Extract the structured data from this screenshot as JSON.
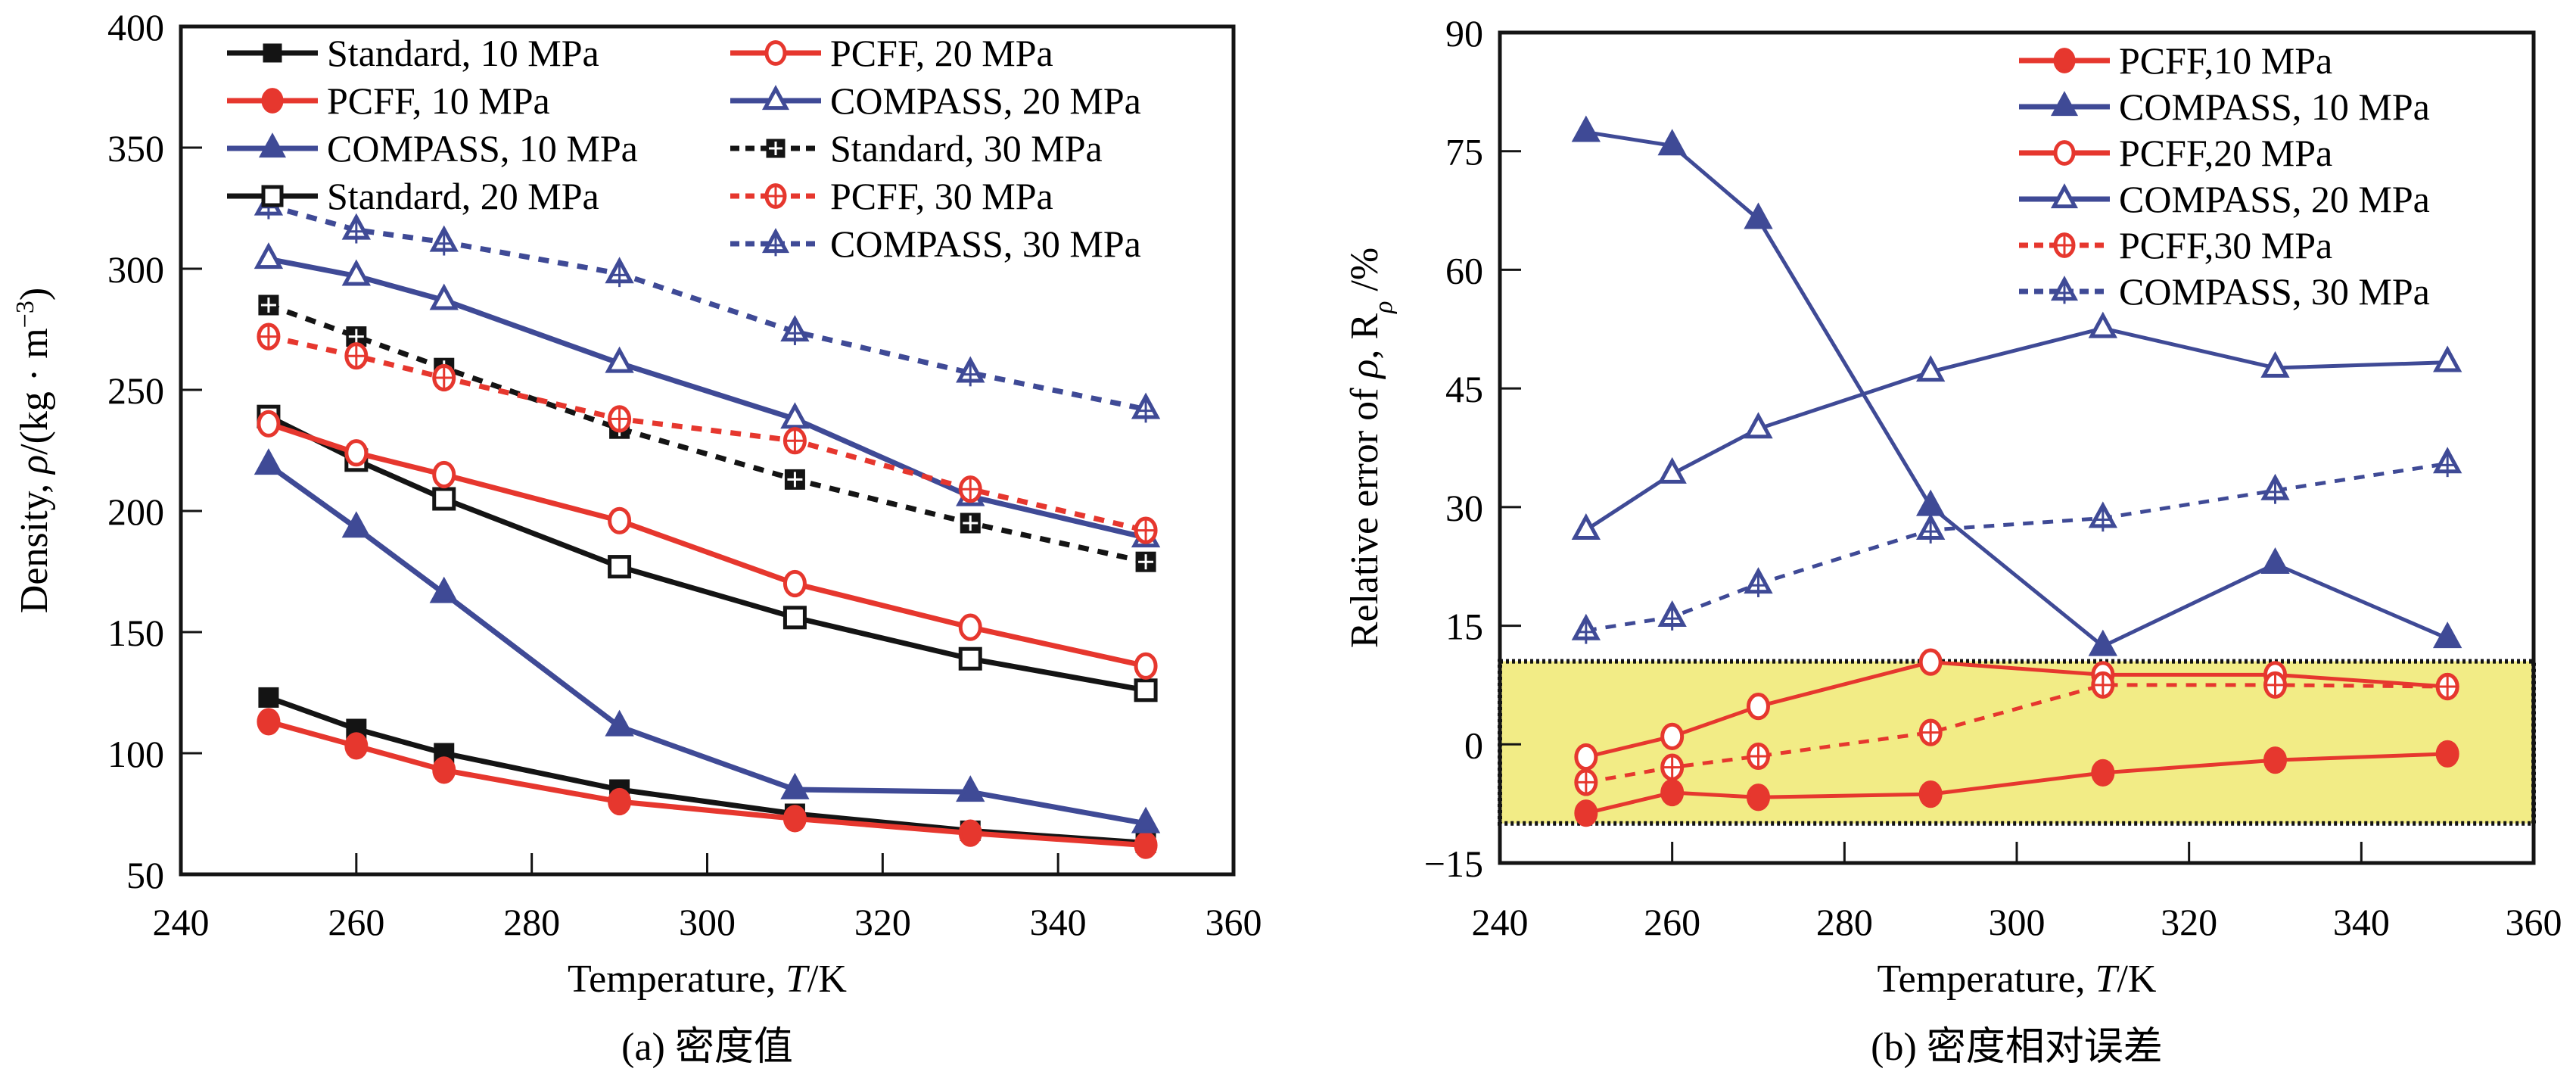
{
  "colors": {
    "black": "#141414",
    "red": "#E6372E",
    "blue": "#3F4A96",
    "band": "#F2EC86"
  },
  "chart_data": [
    {
      "id": "a",
      "type": "line",
      "caption": "(a) 密度值",
      "xlabel": "Temperature, T/K",
      "xlabel_parts": {
        "prefix": "Temperature, ",
        "italic": "T",
        "suffix": "/K"
      },
      "ylabel": "Density, ρ/(kg·m⁻³)",
      "ylabel_parts": {
        "prefix": "Density, ",
        "italic": "ρ",
        "middle": "/(kg · m",
        "sup": "−3",
        "suffix": ")"
      },
      "xlim": [
        240,
        360
      ],
      "ylim": [
        50,
        400
      ],
      "xticks": [
        240,
        260,
        280,
        300,
        320,
        340,
        360
      ],
      "yticks": [
        50,
        100,
        150,
        200,
        250,
        300,
        350,
        400
      ],
      "grid": false,
      "legend_position": "top-left",
      "legend_columns": 2,
      "x": [
        250,
        260,
        270,
        290,
        310,
        330,
        350
      ],
      "series": [
        {
          "name": "Standard, 10 MPa",
          "color": "black",
          "marker": "square-filled",
          "dash": "solid",
          "values": [
            123,
            110,
            100,
            85,
            75,
            68,
            63
          ]
        },
        {
          "name": "PCFF, 10 MPa",
          "color": "red",
          "marker": "circle-filled",
          "dash": "solid",
          "values": [
            113,
            103,
            93,
            80,
            73,
            67,
            62
          ]
        },
        {
          "name": "COMPASS, 10 MPa",
          "color": "blue",
          "marker": "triangle-filled",
          "dash": "solid",
          "values": [
            219,
            193,
            166,
            111,
            85,
            84,
            71
          ]
        },
        {
          "name": "Standard, 20 MPa",
          "color": "black",
          "marker": "square-open",
          "dash": "solid",
          "values": [
            239,
            221,
            205,
            177,
            156,
            139,
            126
          ]
        },
        {
          "name": "PCFF, 20 MPa",
          "color": "red",
          "marker": "circle-open",
          "dash": "solid",
          "values": [
            236,
            224,
            215,
            196,
            170,
            152,
            136
          ]
        },
        {
          "name": "COMPASS, 20 MPa",
          "color": "blue",
          "marker": "triangle-open",
          "dash": "solid",
          "values": [
            304,
            297,
            287,
            261,
            238,
            206,
            189
          ]
        },
        {
          "name": "Standard, 30 MPa",
          "color": "black",
          "marker": "square-cross",
          "dash": "dashed",
          "values": [
            285,
            272,
            259,
            234,
            213,
            195,
            179
          ]
        },
        {
          "name": "PCFF, 30 MPa",
          "color": "red",
          "marker": "circle-cross",
          "dash": "dashed",
          "values": [
            272,
            264,
            255,
            238,
            229,
            209,
            192
          ]
        },
        {
          "name": "COMPASS, 30 MPa",
          "color": "blue",
          "marker": "triangle-cross",
          "dash": "dashed",
          "values": [
            326,
            316,
            311,
            298,
            274,
            257,
            242
          ]
        }
      ]
    },
    {
      "id": "b",
      "type": "line",
      "caption": "(b) 密度相对误差",
      "xlabel": "Temperature, T/K",
      "xlabel_parts": {
        "prefix": "Temperature, ",
        "italic": "T",
        "suffix": "/K"
      },
      "ylabel": "Relative error of ρ, Rρ/%",
      "ylabel_parts": {
        "prefix": "Relative error of ",
        "italic": "ρ",
        "middle": ", R",
        "sub": "ρ",
        "suffix": " /%"
      },
      "xlim": [
        240,
        360
      ],
      "ylim": [
        -15,
        90
      ],
      "xticks": [
        240,
        260,
        280,
        300,
        320,
        340,
        360
      ],
      "yticks": [
        -15,
        0,
        15,
        30,
        45,
        60,
        75,
        90
      ],
      "grid": false,
      "legend_position": "top-right",
      "legend_columns": 1,
      "highlight_band": {
        "y_from": -10,
        "y_to": 10.5,
        "color": "band",
        "border": "dotted"
      },
      "x": [
        250,
        260,
        270,
        290,
        310,
        330,
        350
      ],
      "series": [
        {
          "name": "PCFF,10 MPa",
          "color": "red",
          "marker": "circle-filled",
          "dash": "solid",
          "values": [
            -8.7,
            -6.1,
            -6.7,
            -6.3,
            -3.6,
            -2.0,
            -1.2
          ]
        },
        {
          "name": "COMPASS, 10 MPa",
          "color": "blue",
          "marker": "triangle-filled",
          "dash": "solid",
          "values": [
            77.4,
            75.7,
            66.4,
            30.1,
            12.4,
            22.8,
            13.4
          ]
        },
        {
          "name": "PCFF,20 MPa",
          "color": "red",
          "marker": "circle-open",
          "dash": "solid",
          "values": [
            -1.6,
            1.0,
            4.8,
            10.4,
            8.8,
            8.8,
            7.3
          ]
        },
        {
          "name": "COMPASS, 20 MPa",
          "color": "blue",
          "marker": "triangle-open",
          "dash": "solid",
          "values": [
            27.1,
            34.2,
            39.9,
            47.1,
            52.6,
            47.6,
            48.3
          ]
        },
        {
          "name": "PCFF,30 MPa",
          "color": "red",
          "marker": "circle-cross",
          "dash": "dashed",
          "values": [
            -4.8,
            -2.9,
            -1.5,
            1.5,
            7.5,
            7.5,
            7.3
          ]
        },
        {
          "name": "COMPASS, 30 MPa",
          "color": "blue",
          "marker": "triangle-cross",
          "dash": "dashed",
          "values": [
            14.4,
            16.1,
            20.3,
            27.1,
            28.6,
            32.1,
            35.5
          ]
        }
      ]
    }
  ]
}
